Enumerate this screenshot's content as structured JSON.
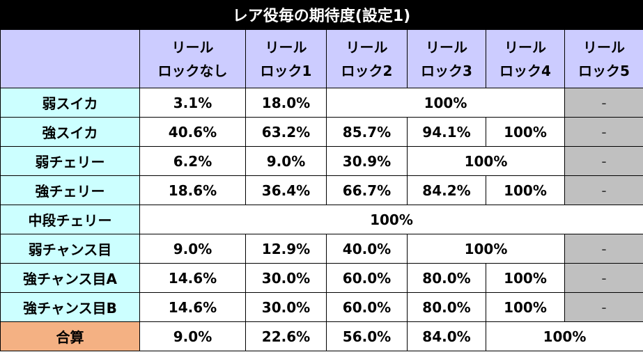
{
  "title": "レア役毎の期待度(設定1)",
  "header": {
    "corner": "",
    "columns": [
      {
        "line1": "リール",
        "line2": "ロックなし"
      },
      {
        "line1": "リール",
        "line2": "ロック1"
      },
      {
        "line1": "リール",
        "line2": "ロック2"
      },
      {
        "line1": "リール",
        "line2": "ロック3"
      },
      {
        "line1": "リール",
        "line2": "ロック4"
      },
      {
        "line1": "リール",
        "line2": "ロック5"
      }
    ]
  },
  "rows": [
    {
      "label": "弱スイカ",
      "c0": "3.1%",
      "c1": "18.0%",
      "merged": "100%",
      "c5": "-"
    },
    {
      "label": "強スイカ",
      "c0": "40.6%",
      "c1": "63.2%",
      "c2": "85.7%",
      "c3": "94.1%",
      "c4": "100%",
      "c5": "-"
    },
    {
      "label": "弱チェリー",
      "c0": "6.2%",
      "c1": "9.0%",
      "c2": "30.9%",
      "merged": "100%",
      "c5": "-"
    },
    {
      "label": "強チェリー",
      "c0": "18.6%",
      "c1": "36.4%",
      "c2": "66.7%",
      "c3": "84.2%",
      "c4": "100%",
      "c5": "-"
    },
    {
      "label": "中段チェリー",
      "merged": "100%"
    },
    {
      "label": "弱チャンス目",
      "c0": "9.0%",
      "c1": "12.9%",
      "c2": "40.0%",
      "merged": "100%",
      "c5": "-"
    },
    {
      "label": "強チャンス目A",
      "c0": "14.6%",
      "c1": "30.0%",
      "c2": "60.0%",
      "c3": "80.0%",
      "c4": "100%",
      "c5": "-"
    },
    {
      "label": "強チャンス目B",
      "c0": "14.6%",
      "c1": "30.0%",
      "c2": "60.0%",
      "c3": "80.0%",
      "c4": "100%",
      "c5": "-"
    }
  ],
  "total": {
    "label": "合算",
    "c0": "9.0%",
    "c1": "22.6%",
    "c2": "56.0%",
    "c3": "84.0%",
    "merged": "100%"
  },
  "colors": {
    "title_bg": "#000000",
    "header_bg": "#ccccff",
    "row_label_bg": "#ccffff",
    "total_label_bg": "#f4b183",
    "unavailable_bg": "#c0c0c0"
  }
}
